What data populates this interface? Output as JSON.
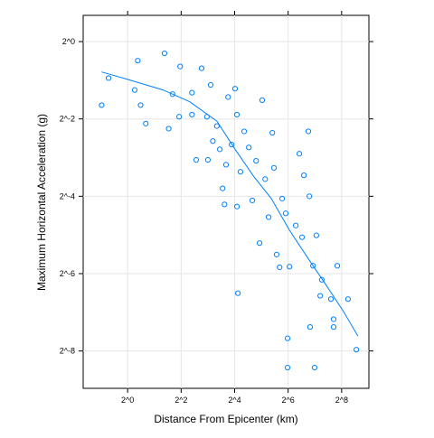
{
  "chart_data": {
    "type": "scatter",
    "xlabel": "Distance From Epicenter (km)",
    "ylabel": "Maximum Horizontal Acceleration (g)",
    "color": "#0080ff",
    "log_base": 2,
    "xlog": true,
    "ylog": true,
    "grid": true,
    "xlim": [
      0.316,
      519
    ],
    "ylim": [
      0.002,
      1.6
    ],
    "xticks": [
      {
        "value": 1,
        "label": "2^0"
      },
      {
        "value": 4,
        "label": "2^2"
      },
      {
        "value": 16,
        "label": "2^4"
      },
      {
        "value": 64,
        "label": "2^6"
      },
      {
        "value": 256,
        "label": "2^8"
      }
    ],
    "yticks": [
      {
        "value": 1,
        "label": "2^0"
      },
      {
        "value": 0.25,
        "label": "2^-2"
      },
      {
        "value": 0.0625,
        "label": "2^-4"
      },
      {
        "value": 0.015625,
        "label": "2^-6"
      },
      {
        "value": 0.00390625,
        "label": "2^-8"
      }
    ],
    "x": [
      0.51,
      0.61,
      1.3,
      1.2,
      1.4,
      1.6,
      2.6,
      2.9,
      3.2,
      3.9,
      3.8,
      5.3,
      5.3,
      5.9,
      6.8,
      7.8,
      8.0,
      8.6,
      10.1,
      10.9,
      11.7,
      12.3,
      13.5,
      14.8,
      16.2,
      17.0,
      17.4,
      17.0,
      18.6,
      20.5,
      23.1,
      25.3,
      27.9,
      30.5,
      32.7,
      35.3,
      38.6,
      42.5,
      44.3,
      47.5,
      51.3,
      54.9,
      60.1,
      63.1,
      63.1,
      66.3,
      85.6,
      91.8,
      96.3,
      111,
      122,
      133,
      113,
      127,
      147,
      153,
      194,
      208,
      229,
      208,
      302,
      375,
      108,
      78,
      12.8,
      9.1
    ],
    "values": [
      0.32,
      0.52,
      0.71,
      0.42,
      0.32,
      0.23,
      0.81,
      0.21,
      0.39,
      0.64,
      0.26,
      0.4,
      0.27,
      0.12,
      0.62,
      0.26,
      0.12,
      0.46,
      0.22,
      0.145,
      0.072,
      0.054,
      0.37,
      0.158,
      0.43,
      0.27,
      0.011,
      0.052,
      0.097,
      0.2,
      0.15,
      0.058,
      0.118,
      0.027,
      0.35,
      0.085,
      0.043,
      0.195,
      0.104,
      0.022,
      0.0175,
      0.06,
      0.046,
      0.0049,
      0.0029,
      0.0177,
      0.134,
      0.03,
      0.091,
      0.0625,
      0.018,
      0.031,
      0.006,
      0.0029,
      0.0105,
      0.014,
      0.0099,
      0.0069,
      0.018,
      0.006,
      0.0099,
      0.004,
      0.2,
      0.037,
      0.11,
      0.168
    ],
    "fit": {
      "x": [
        0.51,
        0.98,
        2.5,
        5.0,
        10.1,
        16.2,
        26,
        41.4,
        66.3,
        105,
        169,
        269,
        391
      ],
      "values": [
        0.58,
        0.51,
        0.42,
        0.34,
        0.24,
        0.145,
        0.09,
        0.06,
        0.034,
        0.021,
        0.0129,
        0.0079,
        0.0051
      ]
    }
  }
}
